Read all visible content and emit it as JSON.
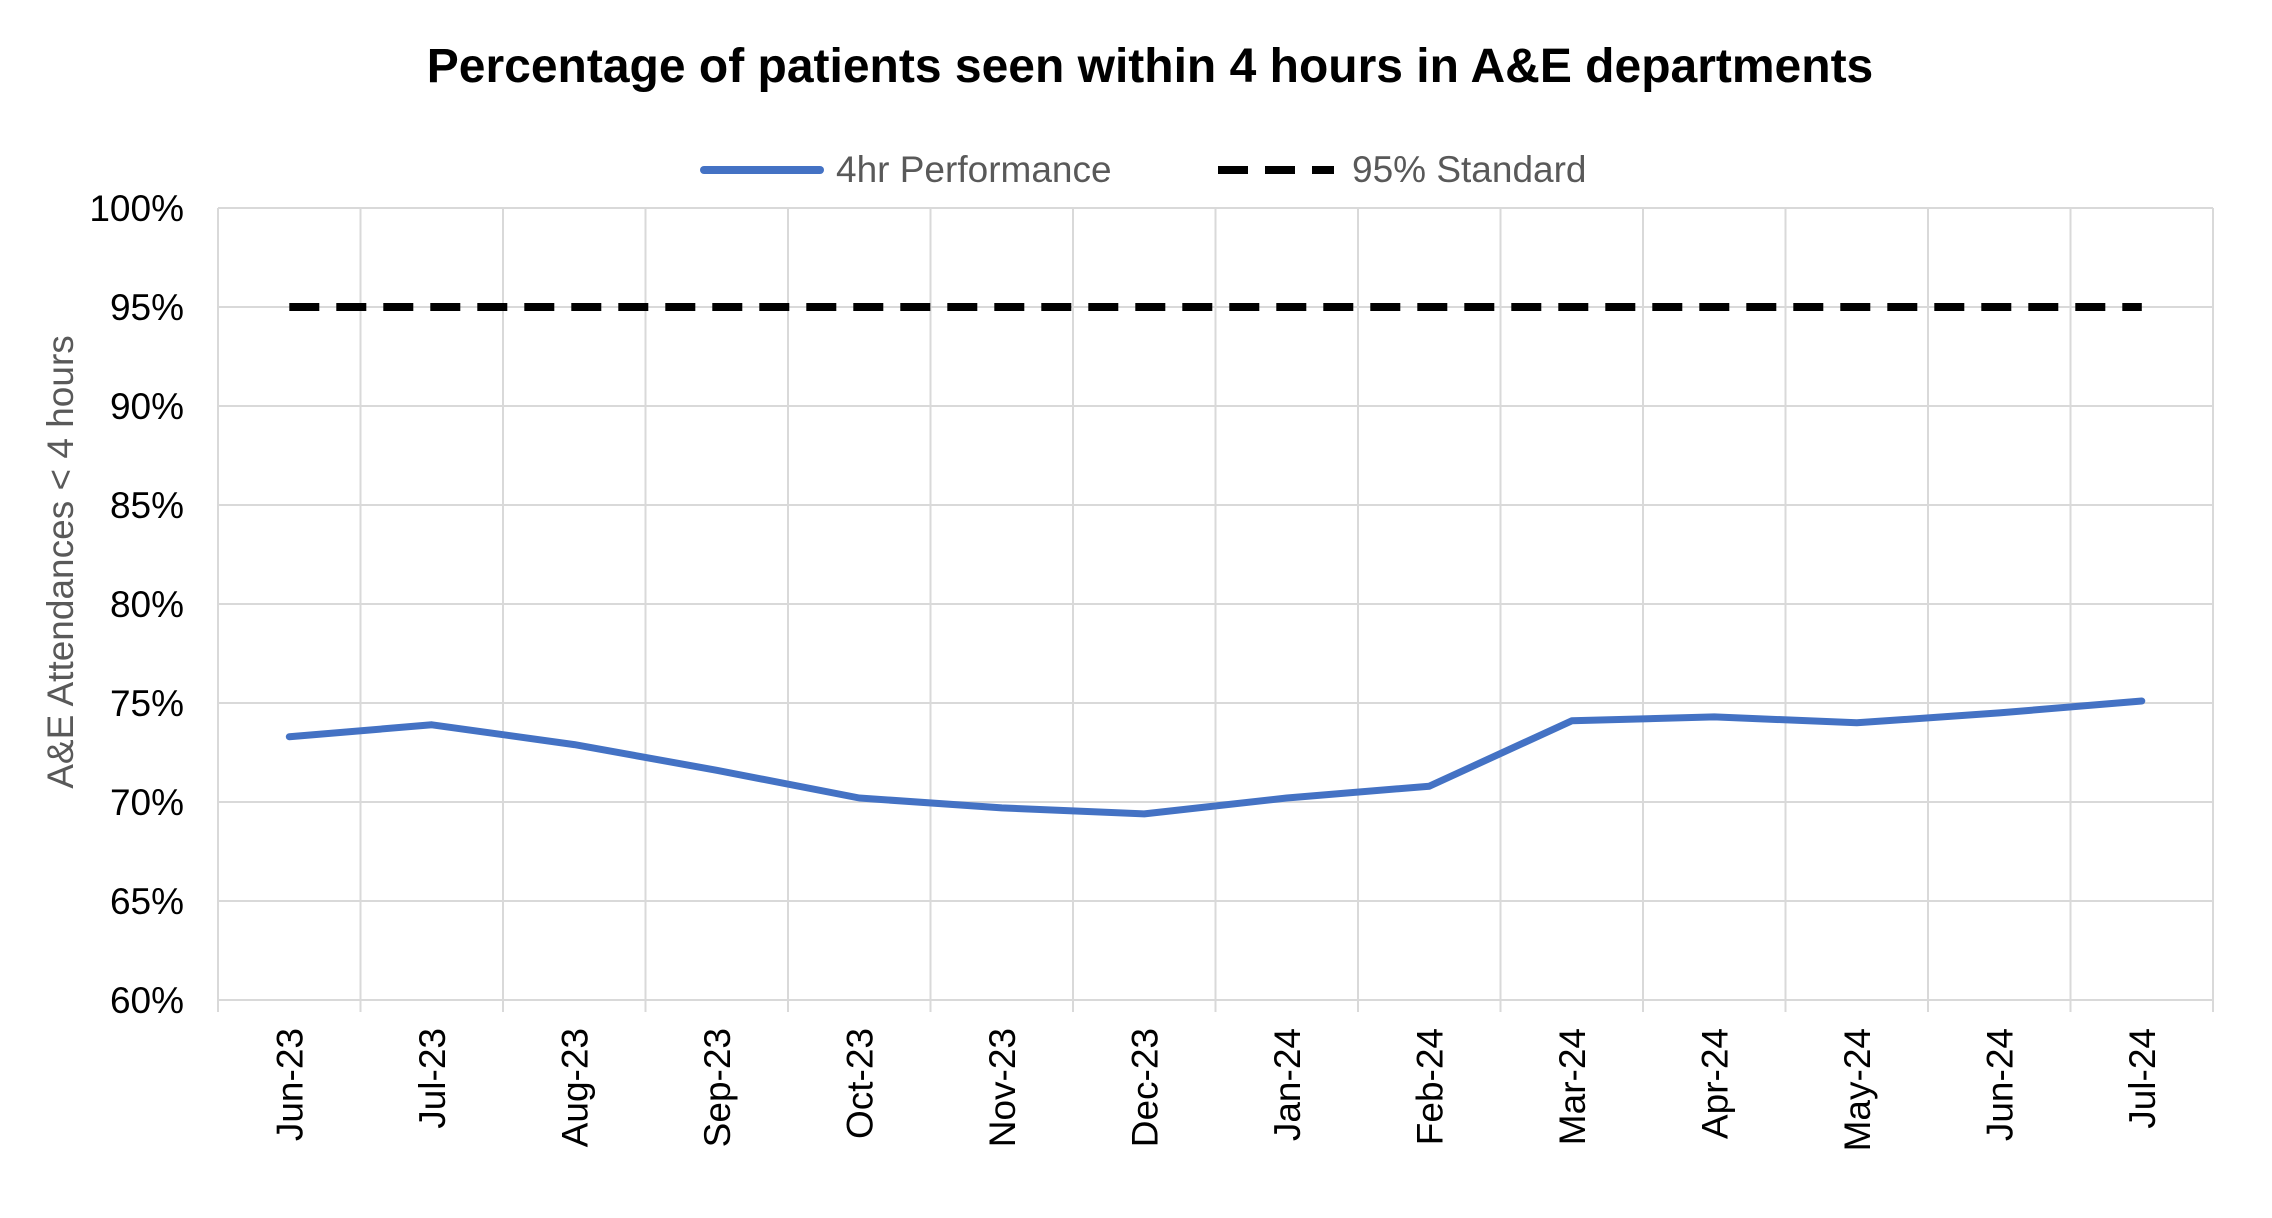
{
  "chart_data": {
    "type": "line",
    "title": "Percentage of patients seen within 4 hours in A&E departments",
    "xlabel": "",
    "ylabel": "A&E Attendances < 4 hours",
    "categories": [
      "Jun-23",
      "Jul-23",
      "Aug-23",
      "Sep-23",
      "Oct-23",
      "Nov-23",
      "Dec-23",
      "Jan-24",
      "Feb-24",
      "Mar-24",
      "Apr-24",
      "May-24",
      "Jun-24",
      "Jul-24"
    ],
    "ylim": [
      0.6,
      1.0
    ],
    "ytick_values": [
      0.6,
      0.65,
      0.7,
      0.75,
      0.8,
      0.85,
      0.9,
      0.95,
      1.0
    ],
    "ytick_labels": [
      "60%",
      "65%",
      "70%",
      "75%",
      "80%",
      "85%",
      "90%",
      "95%",
      "100%"
    ],
    "grid": true,
    "legend_position": "top",
    "series": [
      {
        "name": "4hr Performance",
        "style": "solid",
        "color": "#4472C4",
        "values": [
          0.733,
          0.739,
          0.729,
          0.716,
          0.702,
          0.697,
          0.694,
          0.702,
          0.708,
          0.741,
          0.743,
          0.74,
          0.745,
          0.751
        ]
      },
      {
        "name": "95% Standard",
        "style": "dashed",
        "color": "#000000",
        "values": [
          0.95,
          0.95,
          0.95,
          0.95,
          0.95,
          0.95,
          0.95,
          0.95,
          0.95,
          0.95,
          0.95,
          0.95,
          0.95,
          0.95
        ]
      }
    ]
  },
  "colors": {
    "grid": "#D9D9D9",
    "axis_text": "#000000",
    "ylabel_text": "#595959",
    "legend_text": "#595959"
  }
}
